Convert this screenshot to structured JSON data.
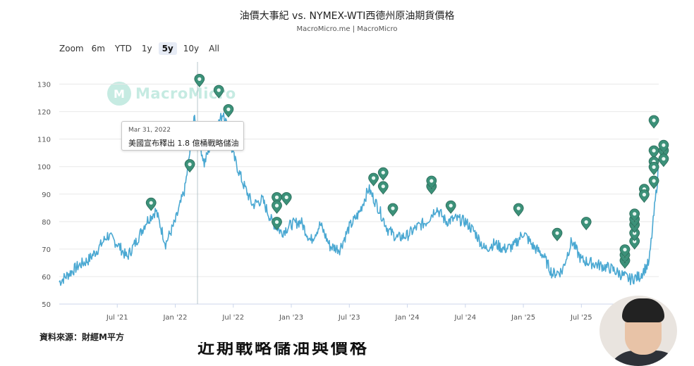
{
  "header": {
    "title": "油價大事紀 vs. NYMEX-WTI西德州原油期貨價格",
    "subtitle": "MacroMicro.me | MacroMicro"
  },
  "zoom": {
    "label": "Zoom",
    "options": [
      "6m",
      "YTD",
      "1y",
      "5y",
      "10y",
      "All"
    ],
    "selected": "5y"
  },
  "watermark": {
    "logo_icon": "macromicro-logo-icon",
    "text": "MacroMicro"
  },
  "tooltip": {
    "date": "Mar 31, 2022",
    "text": "美國宣布釋出 1.8 億桶戰略儲油"
  },
  "source": "資料來源：財經M平方",
  "caption_partial": "近期戰略儲油與價格",
  "colors": {
    "line": "#4aa8d2",
    "marker": "#3c9179",
    "crosshair": "#b8c6cc",
    "grid": "#e8e8e8"
  },
  "chart_data": {
    "type": "line",
    "title": "油價大事紀 vs. NYMEX-WTI西德州原油期貨價格",
    "series": [
      {
        "name": "",
        "x": [
          "2021-01",
          "2021-02",
          "2021-03",
          "2021-04",
          "2021-05",
          "2021-06",
          "2021-07",
          "2021-08",
          "2021-09",
          "2021-10",
          "2021-11",
          "2021-12",
          "2022-01",
          "2022-02",
          "2022-03",
          "2022-04",
          "2022-05",
          "2022-06",
          "2022-07",
          "2022-08",
          "2022-09",
          "2022-10",
          "2022-11",
          "2022-12",
          "2023-01",
          "2023-02",
          "2023-03",
          "2023-04",
          "2023-05",
          "2023-06",
          "2023-07",
          "2023-08",
          "2023-09",
          "2023-10",
          "2023-11",
          "2023-12",
          "2024-01",
          "2024-02",
          "2024-03",
          "2024-04",
          "2024-05",
          "2024-06",
          "2024-07",
          "2024-08",
          "2024-09",
          "2024-10",
          "2024-11",
          "2024-12",
          "2025-01",
          "2025-02",
          "2025-03",
          "2025-04",
          "2025-05",
          "2025-06",
          "2025-07",
          "2025-08",
          "2025-09",
          "2025-10",
          "2025-11",
          "2025-12",
          "2026-01",
          "2026-02",
          "2026-03"
        ],
        "values": [
          58,
          61,
          64,
          66,
          70,
          75,
          72,
          67,
          73,
          80,
          84,
          72,
          80,
          92,
          118,
          101,
          112,
          120,
          104,
          94,
          86,
          88,
          80,
          76,
          79,
          80,
          73,
          79,
          71,
          70,
          78,
          83,
          92,
          85,
          77,
          74,
          75,
          78,
          80,
          85,
          80,
          81,
          80,
          76,
          70,
          72,
          70,
          71,
          76,
          71,
          68,
          61,
          62,
          73,
          66,
          65,
          64,
          63,
          61,
          59,
          60,
          65,
          100
        ]
      }
    ],
    "markers": [
      {
        "x": "2021-10",
        "y": 84
      },
      {
        "x": "2022-02",
        "y": 98
      },
      {
        "x": "2022-03",
        "y": 129
      },
      {
        "x": "2022-03",
        "y": 107
      },
      {
        "x": "2022-05",
        "y": 125
      },
      {
        "x": "2022-06",
        "y": 118
      },
      {
        "x": "2022-11",
        "y": 86
      },
      {
        "x": "2022-11",
        "y": 83
      },
      {
        "x": "2022-11",
        "y": 77
      },
      {
        "x": "2022-12",
        "y": 86
      },
      {
        "x": "2023-09",
        "y": 93
      },
      {
        "x": "2023-10",
        "y": 90
      },
      {
        "x": "2023-10",
        "y": 95
      },
      {
        "x": "2023-11",
        "y": 82
      },
      {
        "x": "2024-03",
        "y": 90
      },
      {
        "x": "2024-03",
        "y": 92
      },
      {
        "x": "2024-05",
        "y": 83
      },
      {
        "x": "2024-12",
        "y": 82
      },
      {
        "x": "2025-04",
        "y": 73
      },
      {
        "x": "2025-07",
        "y": 77
      },
      {
        "x": "2025-11",
        "y": 63
      },
      {
        "x": "2025-11",
        "y": 65
      },
      {
        "x": "2025-11",
        "y": 67
      },
      {
        "x": "2025-12",
        "y": 70
      },
      {
        "x": "2025-12",
        "y": 73
      },
      {
        "x": "2025-12",
        "y": 76
      },
      {
        "x": "2025-12",
        "y": 78
      },
      {
        "x": "2025-12",
        "y": 80
      },
      {
        "x": "2026-01",
        "y": 89
      },
      {
        "x": "2026-01",
        "y": 87
      },
      {
        "x": "2026-02",
        "y": 103
      },
      {
        "x": "2026-02",
        "y": 99
      },
      {
        "x": "2026-02",
        "y": 97
      },
      {
        "x": "2026-02",
        "y": 114
      },
      {
        "x": "2026-02",
        "y": 92
      },
      {
        "x": "2026-03",
        "y": 103
      },
      {
        "x": "2026-03",
        "y": 100
      },
      {
        "x": "2026-03",
        "y": 105
      }
    ],
    "xlabel": "",
    "ylabel": "",
    "y_ticks": [
      50,
      60,
      70,
      80,
      90,
      100,
      110,
      120,
      130
    ],
    "x_ticks": [
      "Jul '21",
      "Jan '22",
      "Jul '22",
      "Jan '23",
      "Jul '23",
      "Jan '24",
      "Jul '24",
      "Jan '25",
      "Jul '25"
    ],
    "ylim": [
      50,
      135
    ],
    "xlim": [
      "2021-01",
      "2026-03"
    ],
    "grid": true,
    "crosshair_x": "2022-03"
  }
}
